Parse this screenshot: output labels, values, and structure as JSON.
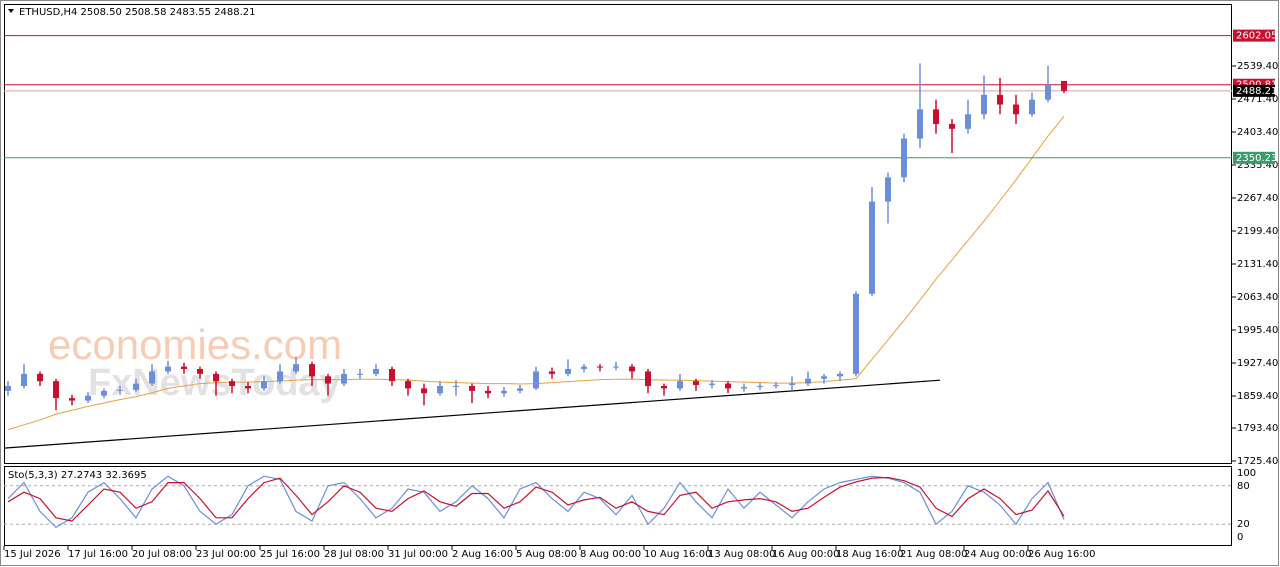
{
  "chart_data": {
    "type": "candlestick",
    "title": "ETHUSD,H4  2508.50 2508.58 2483.55 2488.21",
    "categories": [
      "15 Jul 2026",
      null,
      null,
      null,
      "17 Jul 16:00",
      null,
      null,
      null,
      "20 Jul 08:00",
      null,
      null,
      null,
      "23 Jul 00:00",
      null,
      null,
      null,
      "25 Jul 16:00",
      null,
      null,
      null,
      "28 Jul 08:00",
      null,
      null,
      null,
      "31 Jul 00:00",
      null,
      null,
      null,
      "2 Aug 16:00",
      null,
      null,
      null,
      "5 Aug 08:00",
      null,
      null,
      null,
      "8 Aug 00:00",
      null,
      null,
      null,
      "10 Aug 16:00",
      null,
      null,
      null,
      "13 Aug 08:00",
      null,
      null,
      null,
      "16 Aug 00:00",
      null,
      null,
      null,
      "18 Aug 16:00",
      null,
      null,
      null,
      "21 Aug 08:00",
      null,
      null,
      null,
      "24 Aug 00:00",
      null,
      null,
      null,
      "26 Aug 16:00",
      null,
      null
    ],
    "ohlc": [
      [
        1870,
        1890,
        1860,
        1880
      ],
      [
        1880,
        1925,
        1875,
        1905
      ],
      [
        1905,
        1910,
        1880,
        1890
      ],
      [
        1890,
        1895,
        1830,
        1855
      ],
      [
        1855,
        1862,
        1840,
        1850
      ],
      [
        1850,
        1868,
        1845,
        1860
      ],
      [
        1860,
        1875,
        1855,
        1870
      ],
      [
        1870,
        1880,
        1862,
        1872
      ],
      [
        1872,
        1895,
        1868,
        1885
      ],
      [
        1885,
        1925,
        1880,
        1910
      ],
      [
        1910,
        1932,
        1905,
        1920
      ],
      [
        1920,
        1928,
        1905,
        1915
      ],
      [
        1915,
        1920,
        1895,
        1905
      ],
      [
        1905,
        1910,
        1860,
        1890
      ],
      [
        1890,
        1895,
        1865,
        1880
      ],
      [
        1880,
        1888,
        1865,
        1875
      ],
      [
        1875,
        1900,
        1870,
        1890
      ],
      [
        1890,
        1925,
        1885,
        1910
      ],
      [
        1910,
        1940,
        1905,
        1925
      ],
      [
        1925,
        1930,
        1880,
        1900
      ],
      [
        1900,
        1905,
        1860,
        1885
      ],
      [
        1885,
        1915,
        1880,
        1905
      ],
      [
        1905,
        1915,
        1895,
        1905
      ],
      [
        1905,
        1925,
        1900,
        1915
      ],
      [
        1915,
        1920,
        1880,
        1890
      ],
      [
        1890,
        1895,
        1860,
        1875
      ],
      [
        1875,
        1885,
        1840,
        1865
      ],
      [
        1865,
        1890,
        1860,
        1880
      ],
      [
        1880,
        1892,
        1860,
        1880
      ],
      [
        1880,
        1885,
        1845,
        1870
      ],
      [
        1870,
        1880,
        1855,
        1865
      ],
      [
        1865,
        1878,
        1858,
        1870
      ],
      [
        1870,
        1882,
        1865,
        1875
      ],
      [
        1875,
        1920,
        1872,
        1910
      ],
      [
        1910,
        1918,
        1895,
        1905
      ],
      [
        1905,
        1935,
        1900,
        1915
      ],
      [
        1915,
        1925,
        1908,
        1920
      ],
      [
        1920,
        1925,
        1910,
        1918
      ],
      [
        1918,
        1930,
        1912,
        1920
      ],
      [
        1920,
        1925,
        1895,
        1910
      ],
      [
        1910,
        1915,
        1865,
        1880
      ],
      [
        1880,
        1885,
        1860,
        1875
      ],
      [
        1875,
        1905,
        1870,
        1890
      ],
      [
        1890,
        1895,
        1870,
        1882
      ],
      [
        1882,
        1892,
        1875,
        1885
      ],
      [
        1885,
        1890,
        1865,
        1875
      ],
      [
        1875,
        1885,
        1868,
        1878
      ],
      [
        1878,
        1886,
        1872,
        1880
      ],
      [
        1880,
        1888,
        1875,
        1882
      ],
      [
        1882,
        1900,
        1870,
        1885
      ],
      [
        1885,
        1910,
        1880,
        1895
      ],
      [
        1895,
        1905,
        1885,
        1900
      ],
      [
        1900,
        1910,
        1890,
        1905
      ],
      [
        1905,
        2075,
        1900,
        2070
      ],
      [
        2070,
        2290,
        2065,
        2260
      ],
      [
        2260,
        2320,
        2215,
        2310
      ],
      [
        2310,
        2400,
        2300,
        2390
      ],
      [
        2390,
        2545,
        2370,
        2450
      ],
      [
        2450,
        2470,
        2400,
        2420
      ],
      [
        2420,
        2430,
        2360,
        2410
      ],
      [
        2410,
        2470,
        2400,
        2440
      ],
      [
        2440,
        2520,
        2430,
        2480
      ],
      [
        2480,
        2515,
        2440,
        2460
      ],
      [
        2460,
        2480,
        2420,
        2440
      ],
      [
        2440,
        2485,
        2435,
        2470
      ],
      [
        2470,
        2540,
        2465,
        2500
      ],
      [
        2508.5,
        2508.58,
        2483.55,
        2488.21
      ]
    ],
    "up_color": "#6a8fd8",
    "down_color": "#c8102e",
    "ylim": [
      1721.3,
      2667.2
    ],
    "yticks": [
      {
        "value": 2539.4,
        "label": "2539.40"
      },
      {
        "value": 2471.4,
        "label": "2471.40"
      },
      {
        "value": 2403.4,
        "label": "2403.40"
      },
      {
        "value": 2335.4,
        "label": "2335.40"
      },
      {
        "value": 2267.4,
        "label": "2267.40"
      },
      {
        "value": 2199.4,
        "label": "2199.40"
      },
      {
        "value": 2131.4,
        "label": "2131.40"
      },
      {
        "value": 2063.4,
        "label": "2063.40"
      },
      {
        "value": 1995.4,
        "label": "1995.40"
      },
      {
        "value": 1927.4,
        "label": "1927.40"
      },
      {
        "value": 1859.4,
        "label": "1859.40"
      },
      {
        "value": 1793.4,
        "label": "1793.40"
      },
      {
        "value": 1725.4,
        "label": "1725.40"
      }
    ],
    "levels": [
      {
        "value": 2602.05,
        "color": "#c8102e"
      },
      {
        "value": 2500.81,
        "color": "#c8102e"
      },
      {
        "value": 2488.21,
        "color": "#000000"
      },
      {
        "value": 2350.23,
        "color": "#3a9a6a"
      }
    ],
    "ma": {
      "color": "#e8a040",
      "values": [
        1790,
        1800,
        1810,
        1822,
        1830,
        1838,
        1845,
        1852,
        1858,
        1866,
        1875,
        1880,
        1885,
        1887,
        1888,
        1888,
        1889,
        1890,
        1892,
        1893,
        1893,
        1893,
        1894,
        1894,
        1893,
        1892,
        1890,
        1888,
        1887,
        1886,
        1885,
        1885,
        1884,
        1885,
        1887,
        1889,
        1891,
        1893,
        1894,
        1894,
        1893,
        1892,
        1892,
        1891,
        1890,
        1889,
        1888,
        1887,
        1886,
        1886,
        1887,
        1889,
        1892,
        1895,
        1935,
        1975,
        2015,
        2057,
        2100,
        2140,
        2180,
        2220,
        2262,
        2305,
        2350,
        2395,
        2436
      ]
    },
    "trendline": {
      "color": "#000000",
      "x": [
        -0.25,
        58.25
      ],
      "values": [
        1752,
        1892
      ]
    },
    "watermark": [
      "economies.com",
      "FxNewsToday"
    ],
    "stochastic": {
      "label": "Sto(5,3,3) 27.2743 32.3695",
      "ylim": [
        0,
        100
      ],
      "yticks": [
        100,
        80,
        20,
        0
      ],
      "series": [
        {
          "color": "#6a8fd8",
          "values": [
            60,
            85,
            40,
            15,
            30,
            70,
            85,
            60,
            30,
            75,
            95,
            80,
            40,
            20,
            35,
            80,
            95,
            90,
            40,
            25,
            80,
            85,
            60,
            30,
            45,
            75,
            70,
            40,
            55,
            80,
            60,
            30,
            75,
            85,
            60,
            40,
            70,
            60,
            35,
            65,
            20,
            45,
            85,
            55,
            30,
            75,
            45,
            70,
            50,
            30,
            55,
            75,
            85,
            90,
            95,
            92,
            85,
            70,
            20,
            40,
            80,
            70,
            50,
            20,
            60,
            85,
            27.2743
          ]
        },
        {
          "color": "#c8102e",
          "values": [
            55,
            70,
            60,
            30,
            25,
            50,
            75,
            70,
            45,
            55,
            85,
            85,
            60,
            30,
            30,
            60,
            85,
            92,
            65,
            35,
            55,
            80,
            70,
            45,
            40,
            60,
            72,
            55,
            48,
            68,
            68,
            45,
            55,
            78,
            70,
            50,
            58,
            62,
            45,
            55,
            40,
            35,
            65,
            70,
            45,
            55,
            58,
            60,
            55,
            40,
            45,
            62,
            78,
            86,
            92,
            93,
            88,
            78,
            45,
            32,
            60,
            75,
            60,
            35,
            42,
            72,
            32.3695
          ]
        }
      ]
    }
  }
}
